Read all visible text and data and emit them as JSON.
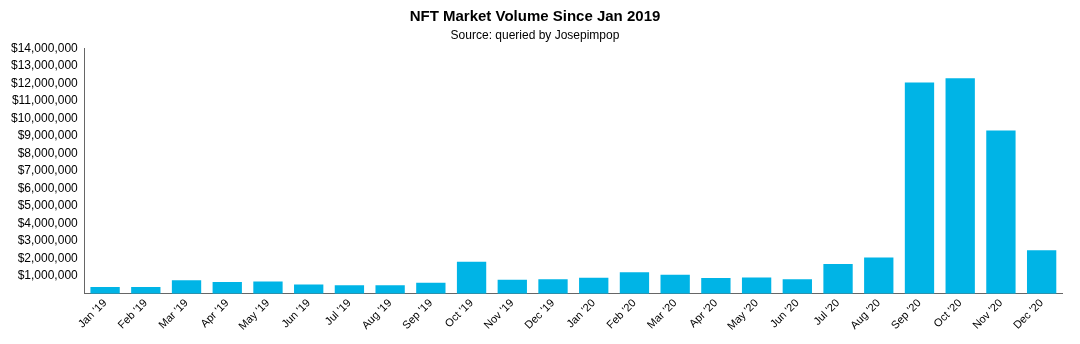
{
  "chart_data": {
    "type": "bar",
    "title": "NFT Market Volume Since Jan 2019",
    "subtitle": "Source: queried by Josepimpop",
    "categories": [
      "Jan '19",
      "Feb '19",
      "Mar '19",
      "Apr '19",
      "May '19",
      "Jun '19",
      "Jul '19",
      "Aug '19",
      "Sep '19",
      "Oct '19",
      "Nov '19",
      "Dec '19",
      "Jan '20",
      "Feb '20",
      "Mar '20",
      "Apr '20",
      "May '20",
      "Jun '20",
      "Jul '20",
      "Aug '20",
      "Sep '20",
      "Oct '20",
      "Nov '20",
      "Dec '20"
    ],
    "values": [
      380000,
      380000,
      770000,
      670000,
      690000,
      520000,
      480000,
      480000,
      620000,
      1820000,
      790000,
      830000,
      910000,
      1220000,
      1080000,
      900000,
      930000,
      830000,
      1700000,
      2070000,
      12050000,
      12290000,
      9310000,
      2480000
    ],
    "color": "#00b4e6",
    "ylim": [
      0,
      14000000
    ],
    "yticks": [
      {
        "value": 0,
        "label": null
      },
      {
        "value": 1000000,
        "label": "$1,000,000"
      },
      {
        "value": 2000000,
        "label": "$2,000,000"
      },
      {
        "value": 3000000,
        "label": "$3,000,000"
      },
      {
        "value": 4000000,
        "label": "$4,000,000"
      },
      {
        "value": 5000000,
        "label": "$5,000,000"
      },
      {
        "value": 6000000,
        "label": "$6,000,000"
      },
      {
        "value": 7000000,
        "label": "$7,000,000"
      },
      {
        "value": 8000000,
        "label": "$8,000,000"
      },
      {
        "value": 9000000,
        "label": "$9,000,000"
      },
      {
        "value": 10000000,
        "label": "$10,000,000"
      },
      {
        "value": 11000000,
        "label": "$11,000,000"
      },
      {
        "value": 12000000,
        "label": "$12,000,000"
      },
      {
        "value": 13000000,
        "label": "$13,000,000"
      },
      {
        "value": 14000000,
        "label": "$14,000,000"
      }
    ],
    "grid": false
  }
}
